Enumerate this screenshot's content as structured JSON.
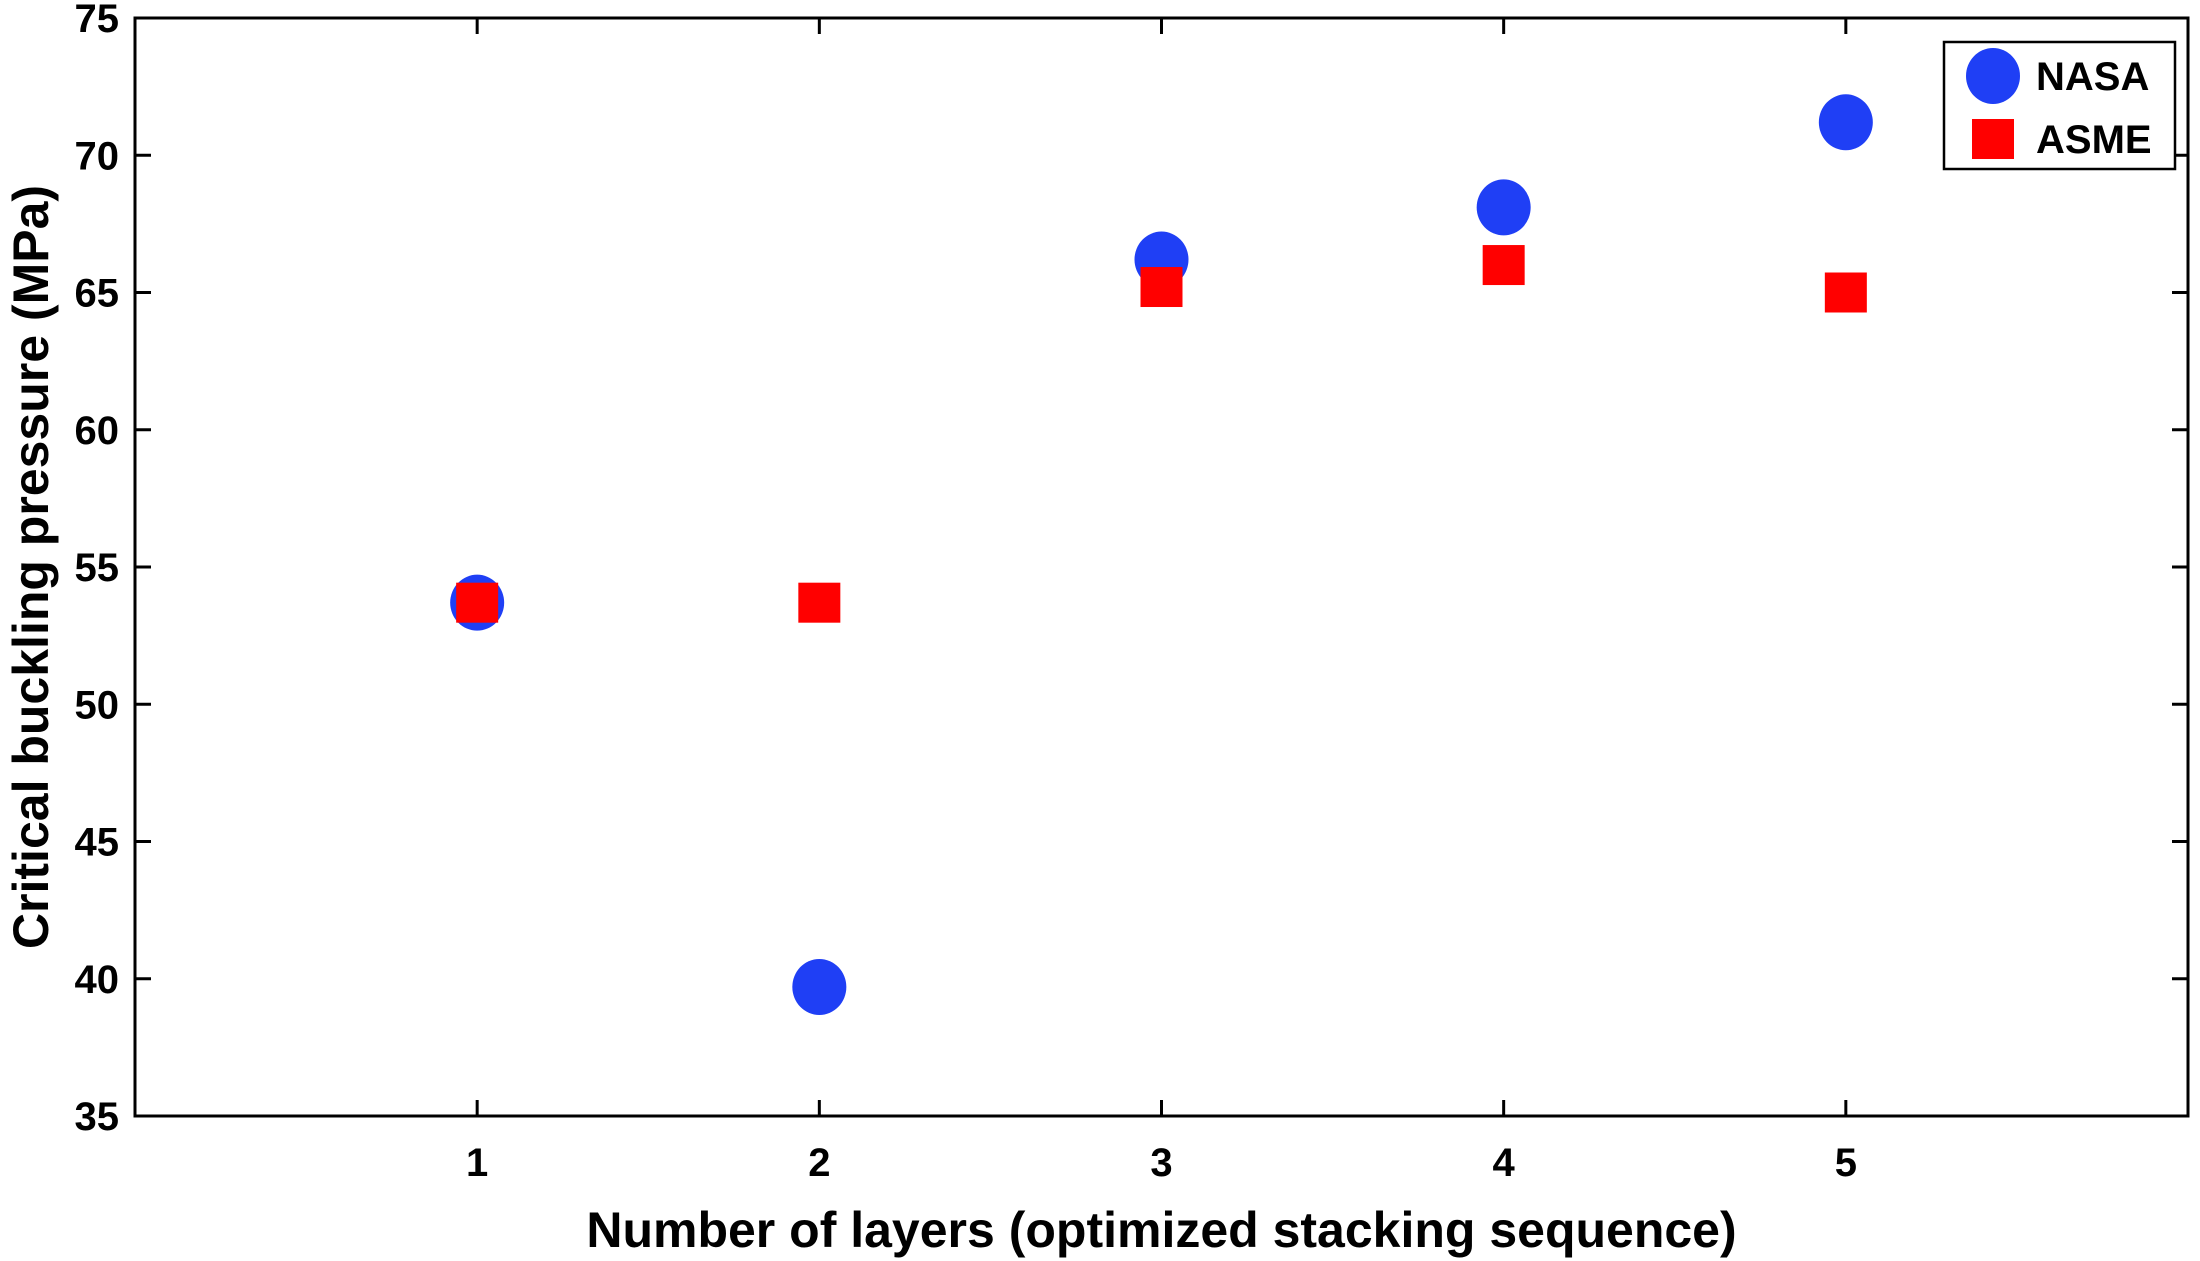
{
  "chart_data": {
    "type": "scatter",
    "title": "",
    "xlabel": "Number of layers (optimized stacking sequence)",
    "ylabel": "Critical buckling pressure (MPa)",
    "xlim": [
      0,
      6
    ],
    "ylim": [
      35,
      75
    ],
    "x_ticks": [
      1,
      2,
      3,
      4,
      5
    ],
    "y_ticks": [
      35,
      40,
      45,
      50,
      55,
      60,
      65,
      70,
      75
    ],
    "grid": false,
    "legend": {
      "position": "top-right"
    },
    "series": [
      {
        "name": "NASA",
        "marker": "circle",
        "color": "#1f3ff5",
        "x": [
          1,
          2,
          3,
          4,
          5
        ],
        "y": [
          53.7,
          39.7,
          66.2,
          68.1,
          71.2
        ]
      },
      {
        "name": "ASME",
        "marker": "square",
        "color": "#ff0000",
        "x": [
          1,
          2,
          3,
          4,
          5
        ],
        "y": [
          53.7,
          53.7,
          65.2,
          66.0,
          65.0
        ]
      }
    ]
  }
}
